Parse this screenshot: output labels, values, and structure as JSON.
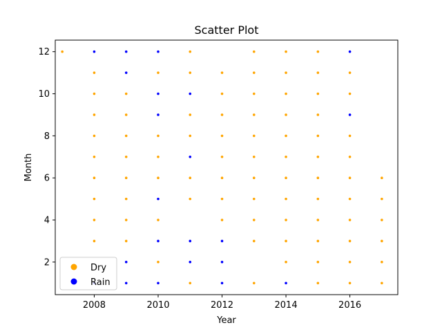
{
  "chart_data": {
    "type": "scatter",
    "title": "Scatter Plot",
    "xlabel": "Year",
    "ylabel": "Month",
    "xlim": [
      2006.78,
      2017.5
    ],
    "ylim": [
      0.45,
      12.55
    ],
    "x_ticks": [
      2008,
      2010,
      2012,
      2014,
      2016
    ],
    "y_ticks": [
      2,
      4,
      6,
      8,
      10,
      12
    ],
    "legend_position": "lower-left",
    "series": [
      {
        "name": "Dry",
        "color": "#ffa500",
        "points": [
          [
            2007,
            12
          ],
          [
            2008,
            11
          ],
          [
            2008,
            10
          ],
          [
            2008,
            9
          ],
          [
            2008,
            8
          ],
          [
            2008,
            7
          ],
          [
            2008,
            6
          ],
          [
            2008,
            5
          ],
          [
            2008,
            4
          ],
          [
            2008,
            3
          ],
          [
            2009,
            10
          ],
          [
            2009,
            9
          ],
          [
            2009,
            8
          ],
          [
            2009,
            7
          ],
          [
            2009,
            6
          ],
          [
            2009,
            5
          ],
          [
            2009,
            4
          ],
          [
            2009,
            3
          ],
          [
            2010,
            11
          ],
          [
            2010,
            8
          ],
          [
            2010,
            7
          ],
          [
            2010,
            6
          ],
          [
            2010,
            4
          ],
          [
            2010,
            2
          ],
          [
            2011,
            12
          ],
          [
            2011,
            11
          ],
          [
            2011,
            9
          ],
          [
            2011,
            8
          ],
          [
            2011,
            6
          ],
          [
            2011,
            5
          ],
          [
            2011,
            1
          ],
          [
            2012,
            11
          ],
          [
            2012,
            10
          ],
          [
            2012,
            9
          ],
          [
            2012,
            8
          ],
          [
            2012,
            7
          ],
          [
            2012,
            6
          ],
          [
            2012,
            5
          ],
          [
            2012,
            4
          ],
          [
            2013,
            12
          ],
          [
            2013,
            11
          ],
          [
            2013,
            10
          ],
          [
            2013,
            9
          ],
          [
            2013,
            8
          ],
          [
            2013,
            7
          ],
          [
            2013,
            6
          ],
          [
            2013,
            5
          ],
          [
            2013,
            4
          ],
          [
            2013,
            3
          ],
          [
            2013,
            1
          ],
          [
            2014,
            12
          ],
          [
            2014,
            11
          ],
          [
            2014,
            10
          ],
          [
            2014,
            9
          ],
          [
            2014,
            8
          ],
          [
            2014,
            7
          ],
          [
            2014,
            6
          ],
          [
            2014,
            5
          ],
          [
            2014,
            4
          ],
          [
            2014,
            3
          ],
          [
            2014,
            2
          ],
          [
            2015,
            12
          ],
          [
            2015,
            11
          ],
          [
            2015,
            10
          ],
          [
            2015,
            9
          ],
          [
            2015,
            8
          ],
          [
            2015,
            7
          ],
          [
            2015,
            6
          ],
          [
            2015,
            5
          ],
          [
            2015,
            4
          ],
          [
            2015,
            3
          ],
          [
            2015,
            2
          ],
          [
            2015,
            1
          ],
          [
            2016,
            11
          ],
          [
            2016,
            10
          ],
          [
            2016,
            8
          ],
          [
            2016,
            7
          ],
          [
            2016,
            6
          ],
          [
            2016,
            5
          ],
          [
            2016,
            4
          ],
          [
            2016,
            3
          ],
          [
            2016,
            2
          ],
          [
            2016,
            1
          ],
          [
            2017,
            6
          ],
          [
            2017,
            5
          ],
          [
            2017,
            4
          ],
          [
            2017,
            3
          ],
          [
            2017,
            2
          ],
          [
            2017,
            1
          ]
        ]
      },
      {
        "name": "Rain",
        "color": "#0000ff",
        "points": [
          [
            2008,
            12
          ],
          [
            2008,
            1
          ],
          [
            2009,
            12
          ],
          [
            2009,
            11
          ],
          [
            2009,
            2
          ],
          [
            2009,
            1
          ],
          [
            2010,
            12
          ],
          [
            2010,
            10
          ],
          [
            2010,
            9
          ],
          [
            2010,
            5
          ],
          [
            2010,
            3
          ],
          [
            2010,
            1
          ],
          [
            2011,
            10
          ],
          [
            2011,
            7
          ],
          [
            2011,
            3
          ],
          [
            2011,
            2
          ],
          [
            2012,
            3
          ],
          [
            2012,
            2
          ],
          [
            2012,
            1
          ],
          [
            2014,
            1
          ],
          [
            2016,
            12
          ],
          [
            2016,
            9
          ]
        ]
      }
    ]
  }
}
